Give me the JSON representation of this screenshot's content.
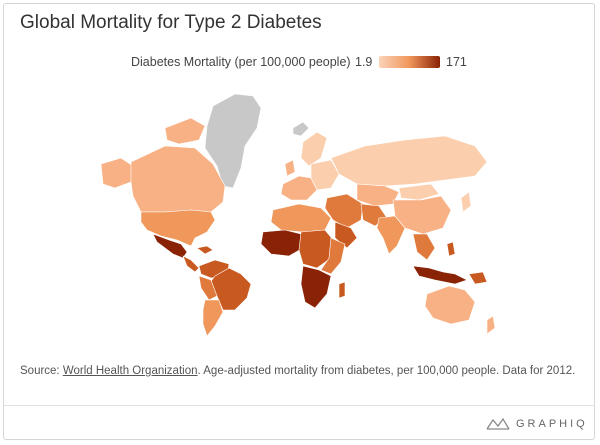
{
  "title": "Global Mortality for Type 2 Diabetes",
  "legend": {
    "label": "Diabetes Mortality (per 100,000 people)",
    "min": "1.9",
    "max": "171",
    "color_low": "#fbd3b8",
    "color_mid": "#f0975b",
    "color_high": "#8a2205"
  },
  "source": {
    "prefix": "Source: ",
    "link_text": "World Health Organization",
    "suffix": ". Age-adjusted mortality from diabetes, per 100,000 people. Data for 2012."
  },
  "brand": {
    "name": "GRAPHIQ",
    "logo_icon": "graphiq-logo-icon"
  },
  "map_colors": {
    "no_data": "#c8c8c8",
    "light": "#fbcfae",
    "light_mid": "#f8b184",
    "mid": "#f0975b",
    "mid_dark": "#e07a3c",
    "dark": "#c85a21",
    "darkest": "#8a2205"
  }
}
